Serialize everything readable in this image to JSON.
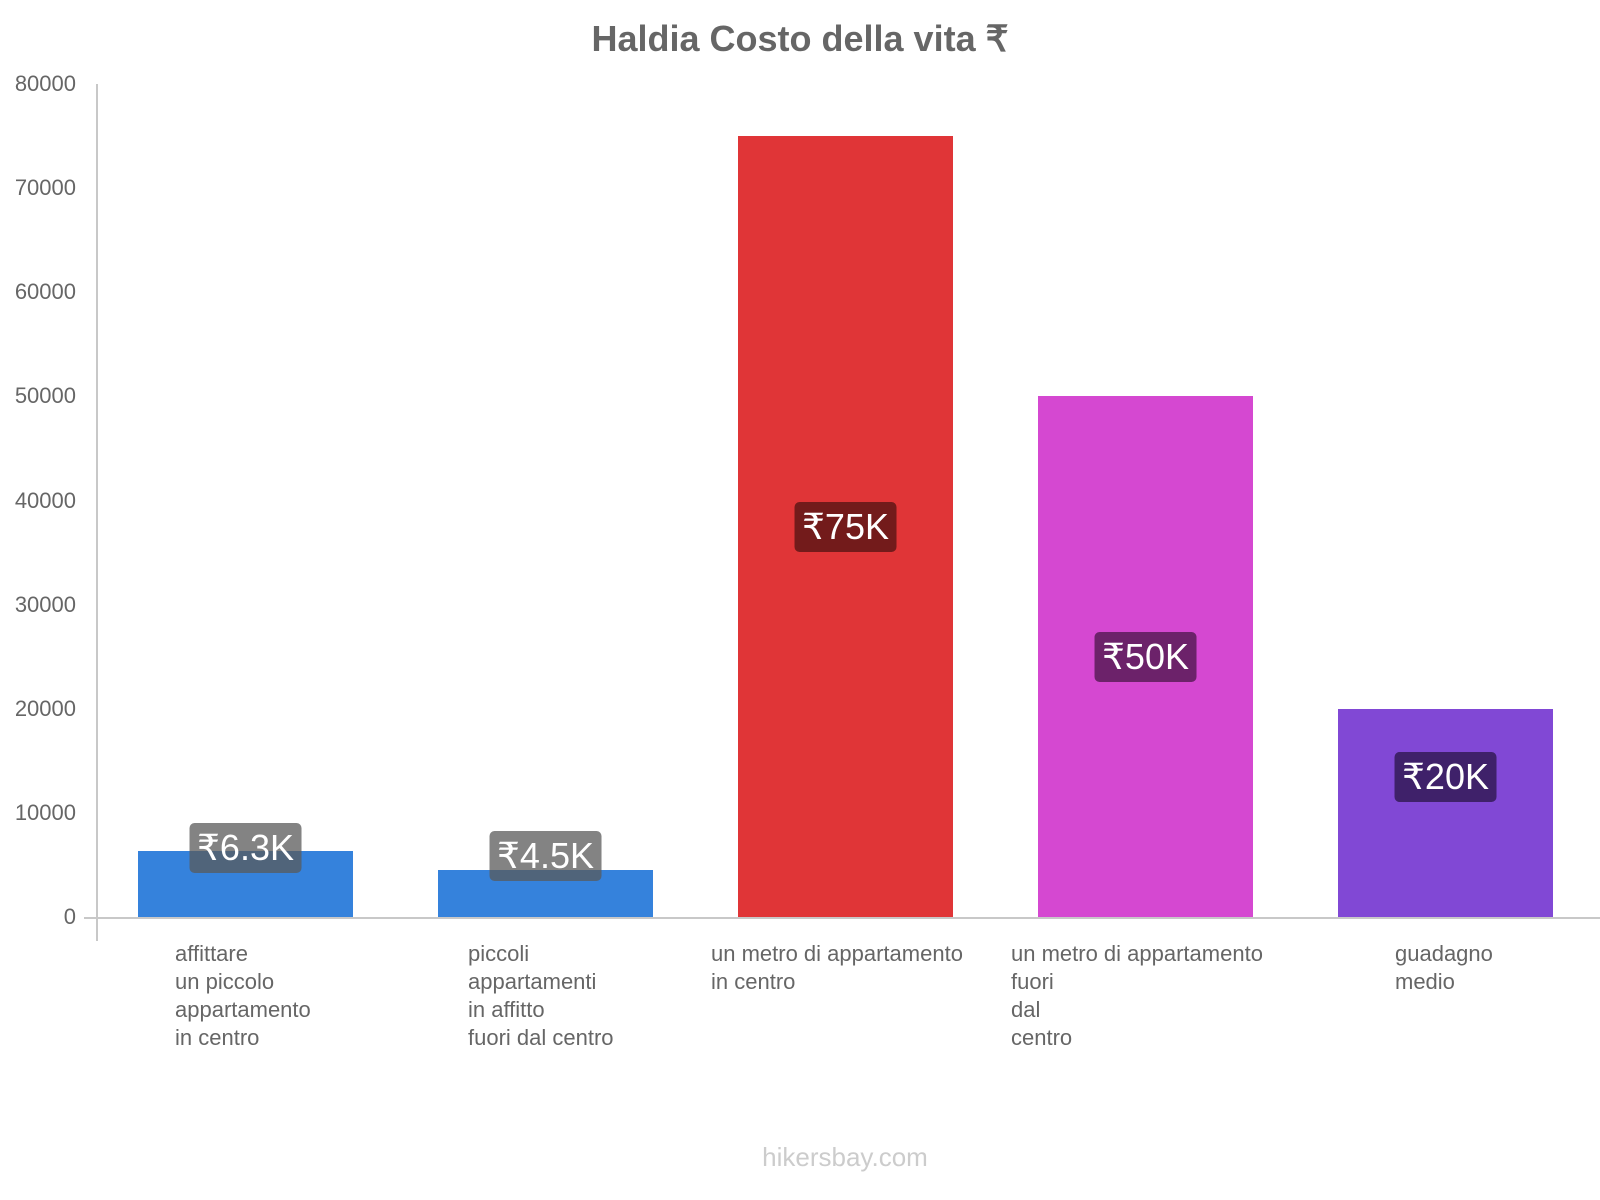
{
  "chart_data": {
    "type": "bar",
    "title": "Haldia Costo della vita ₹",
    "xlabel": "",
    "ylabel": "",
    "ylim": [
      0,
      80000
    ],
    "yticks": [
      "0",
      "10000",
      "20000",
      "30000",
      "40000",
      "50000",
      "60000",
      "70000",
      "80000"
    ],
    "grid": false,
    "legend": null,
    "categories": [
      "affittare\nun piccolo\nappartamento\nin centro",
      "piccoli\nappartamenti\nin affitto\nfuori dal centro",
      "un metro di appartamento\nin centro",
      "un metro di appartamento\nfuori\ndal\ncentro",
      "guadagno\nmedio"
    ],
    "values": [
      6300,
      4500,
      75000,
      50000,
      20000
    ],
    "data_labels": [
      "₹6.3K",
      "₹4.5K",
      "₹75K",
      "₹50K",
      "₹20K"
    ],
    "colors": [
      "#3582dc",
      "#3582dc",
      "#e03537",
      "#d548d1",
      "#8148d5"
    ],
    "label_bg_colors": [
      "rgba(90,90,90,0.75)",
      "rgba(90,90,90,0.75)",
      "#731b1b",
      "#6c226a",
      "#3f216a"
    ]
  },
  "footer": "hikersbay.com"
}
